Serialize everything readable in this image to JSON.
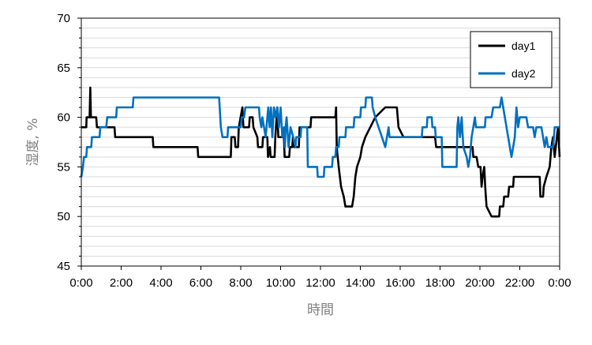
{
  "chart_data": {
    "type": "line",
    "title": "",
    "xlabel": "時間",
    "ylabel": "湿度, %",
    "ylim": [
      45,
      70
    ],
    "y_major_step": 5,
    "y_minor_step": 1,
    "xlim_hours": [
      0,
      24
    ],
    "x_tick_labels": [
      "0:00",
      "2:00",
      "4:00",
      "6:00",
      "8:00",
      "10:00",
      "12:00",
      "14:00",
      "16:00",
      "18:00",
      "20:00",
      "22:00",
      "0:00"
    ],
    "y_tick_labels": [
      "45",
      "50",
      "55",
      "60",
      "65",
      "70"
    ],
    "grid": "horizontal minor gridlines",
    "legend_position": "top-right",
    "series": [
      {
        "name": "day1",
        "color": "#000000",
        "points": [
          [
            "0:00",
            59
          ],
          [
            "0:15",
            59
          ],
          [
            "0:16",
            60
          ],
          [
            "0:25",
            60
          ],
          [
            "0:27",
            63
          ],
          [
            "0:29",
            60
          ],
          [
            "0:45",
            60
          ],
          [
            "0:47",
            59
          ],
          [
            "1:40",
            59
          ],
          [
            "1:42",
            58
          ],
          [
            "3:35",
            58
          ],
          [
            "3:37",
            57
          ],
          [
            "5:50",
            57
          ],
          [
            "5:52",
            56
          ],
          [
            "7:30",
            56
          ],
          [
            "7:32",
            58
          ],
          [
            "7:42",
            58
          ],
          [
            "7:44",
            57
          ],
          [
            "7:52",
            57
          ],
          [
            "7:54",
            59
          ],
          [
            "8:05",
            61
          ],
          [
            "8:08",
            59
          ],
          [
            "8:25",
            59
          ],
          [
            "8:27",
            60
          ],
          [
            "8:36",
            60
          ],
          [
            "8:38",
            59
          ],
          [
            "8:50",
            58
          ],
          [
            "8:52",
            57
          ],
          [
            "9:05",
            57
          ],
          [
            "9:07",
            58
          ],
          [
            "9:20",
            58
          ],
          [
            "9:22",
            56
          ],
          [
            "9:28",
            57
          ],
          [
            "9:30",
            56
          ],
          [
            "9:42",
            56
          ],
          [
            "9:44",
            58
          ],
          [
            "9:50",
            61
          ],
          [
            "9:53",
            58
          ],
          [
            "10:10",
            58
          ],
          [
            "10:12",
            56
          ],
          [
            "10:26",
            56
          ],
          [
            "10:28",
            57
          ],
          [
            "10:35",
            57
          ],
          [
            "10:37",
            58
          ],
          [
            "10:40",
            57
          ],
          [
            "10:55",
            57
          ],
          [
            "10:57",
            59
          ],
          [
            "11:30",
            59
          ],
          [
            "11:32",
            60
          ],
          [
            "12:45",
            60
          ],
          [
            "12:47",
            61
          ],
          [
            "12:49",
            57
          ],
          [
            "12:55",
            55
          ],
          [
            "13:02",
            53
          ],
          [
            "13:10",
            52
          ],
          [
            "13:15",
            51
          ],
          [
            "13:35",
            51
          ],
          [
            "13:40",
            52
          ],
          [
            "13:45",
            54
          ],
          [
            "13:50",
            55
          ],
          [
            "14:00",
            56
          ],
          [
            "14:05",
            57
          ],
          [
            "14:15",
            58
          ],
          [
            "14:30",
            59
          ],
          [
            "14:45",
            60
          ],
          [
            "15:15",
            61
          ],
          [
            "15:50",
            61
          ],
          [
            "15:55",
            59
          ],
          [
            "16:10",
            58
          ],
          [
            "17:45",
            58
          ],
          [
            "17:48",
            57
          ],
          [
            "19:38",
            57
          ],
          [
            "19:40",
            56
          ],
          [
            "19:50",
            56
          ],
          [
            "19:55",
            55
          ],
          [
            "20:02",
            55
          ],
          [
            "20:05",
            53
          ],
          [
            "20:08",
            54
          ],
          [
            "20:13",
            55
          ],
          [
            "20:16",
            53
          ],
          [
            "20:20",
            51
          ],
          [
            "20:35",
            50
          ],
          [
            "20:58",
            50
          ],
          [
            "21:00",
            51
          ],
          [
            "21:10",
            51
          ],
          [
            "21:13",
            52
          ],
          [
            "21:25",
            52
          ],
          [
            "21:28",
            53
          ],
          [
            "21:40",
            53
          ],
          [
            "21:42",
            54
          ],
          [
            "23:00",
            54
          ],
          [
            "23:02",
            52
          ],
          [
            "23:10",
            52
          ],
          [
            "23:12",
            53
          ],
          [
            "23:20",
            54
          ],
          [
            "23:30",
            55
          ],
          [
            "23:35",
            57
          ],
          [
            "23:40",
            58
          ],
          [
            "23:45",
            56
          ],
          [
            "23:55",
            59
          ],
          [
            "24:00",
            56
          ]
        ]
      },
      {
        "name": "day2",
        "color": "#0070C0",
        "points": [
          [
            "0:00",
            54
          ],
          [
            "0:05",
            55
          ],
          [
            "0:08",
            56
          ],
          [
            "0:15",
            56
          ],
          [
            "0:17",
            57
          ],
          [
            "0:30",
            57
          ],
          [
            "0:32",
            58
          ],
          [
            "0:55",
            58
          ],
          [
            "0:57",
            59
          ],
          [
            "1:15",
            59
          ],
          [
            "1:18",
            60
          ],
          [
            "1:45",
            60
          ],
          [
            "1:47",
            61
          ],
          [
            "2:35",
            61
          ],
          [
            "2:37",
            62
          ],
          [
            "6:55",
            62
          ],
          [
            "7:00",
            59
          ],
          [
            "7:05",
            58
          ],
          [
            "7:20",
            58
          ],
          [
            "7:22",
            59
          ],
          [
            "8:00",
            59
          ],
          [
            "8:03",
            60
          ],
          [
            "8:10",
            60
          ],
          [
            "8:14",
            61
          ],
          [
            "8:55",
            61
          ],
          [
            "8:57",
            60
          ],
          [
            "9:02",
            59
          ],
          [
            "9:05",
            60
          ],
          [
            "9:10",
            59
          ],
          [
            "9:15",
            58
          ],
          [
            "9:20",
            60
          ],
          [
            "9:23",
            61
          ],
          [
            "9:27",
            59
          ],
          [
            "9:31",
            61
          ],
          [
            "9:35",
            58
          ],
          [
            "9:40",
            61
          ],
          [
            "9:45",
            60
          ],
          [
            "9:50",
            61
          ],
          [
            "9:55",
            59
          ],
          [
            "10:00",
            61
          ],
          [
            "10:05",
            58
          ],
          [
            "10:10",
            59
          ],
          [
            "10:13",
            57
          ],
          [
            "10:15",
            59
          ],
          [
            "10:18",
            60
          ],
          [
            "10:24",
            57
          ],
          [
            "10:30",
            59
          ],
          [
            "10:38",
            58
          ],
          [
            "10:45",
            57
          ],
          [
            "10:47",
            58
          ],
          [
            "11:00",
            58
          ],
          [
            "11:02",
            59
          ],
          [
            "11:20",
            59
          ],
          [
            "11:22",
            55
          ],
          [
            "11:50",
            55
          ],
          [
            "11:52",
            54
          ],
          [
            "12:10",
            54
          ],
          [
            "12:12",
            55
          ],
          [
            "12:35",
            55
          ],
          [
            "12:37",
            56
          ],
          [
            "12:45",
            56
          ],
          [
            "12:47",
            57
          ],
          [
            "12:55",
            57
          ],
          [
            "12:57",
            58
          ],
          [
            "13:15",
            58
          ],
          [
            "13:17",
            59
          ],
          [
            "13:40",
            59
          ],
          [
            "13:42",
            60
          ],
          [
            "14:00",
            60
          ],
          [
            "14:02",
            61
          ],
          [
            "14:15",
            61
          ],
          [
            "14:17",
            62
          ],
          [
            "14:35",
            62
          ],
          [
            "14:37",
            61
          ],
          [
            "14:45",
            60
          ],
          [
            "14:55",
            59
          ],
          [
            "15:05",
            58
          ],
          [
            "15:15",
            57
          ],
          [
            "15:20",
            58
          ],
          [
            "15:25",
            59
          ],
          [
            "15:28",
            58
          ],
          [
            "17:05",
            58
          ],
          [
            "17:07",
            59
          ],
          [
            "17:20",
            59
          ],
          [
            "17:22",
            60
          ],
          [
            "17:35",
            60
          ],
          [
            "17:37",
            59
          ],
          [
            "17:45",
            59
          ],
          [
            "17:47",
            58
          ],
          [
            "18:05",
            58
          ],
          [
            "18:07",
            55
          ],
          [
            "18:50",
            55
          ],
          [
            "18:52",
            59
          ],
          [
            "18:55",
            60
          ],
          [
            "19:00",
            58
          ],
          [
            "19:05",
            60
          ],
          [
            "19:10",
            57
          ],
          [
            "19:20",
            56
          ],
          [
            "19:25",
            55
          ],
          [
            "19:30",
            56
          ],
          [
            "19:35",
            58
          ],
          [
            "19:40",
            59
          ],
          [
            "19:45",
            60
          ],
          [
            "19:48",
            59
          ],
          [
            "20:15",
            59
          ],
          [
            "20:17",
            60
          ],
          [
            "20:35",
            60
          ],
          [
            "20:40",
            61
          ],
          [
            "21:00",
            61
          ],
          [
            "21:05",
            62
          ],
          [
            "21:10",
            61
          ],
          [
            "21:15",
            60
          ],
          [
            "21:20",
            59
          ],
          [
            "21:25",
            58
          ],
          [
            "21:30",
            57
          ],
          [
            "21:35",
            56
          ],
          [
            "21:40",
            57
          ],
          [
            "21:45",
            58
          ],
          [
            "21:50",
            61
          ],
          [
            "21:55",
            59
          ],
          [
            "22:00",
            60
          ],
          [
            "22:20",
            60
          ],
          [
            "22:25",
            59
          ],
          [
            "22:40",
            59
          ],
          [
            "22:45",
            58
          ],
          [
            "22:50",
            59
          ],
          [
            "23:05",
            59
          ],
          [
            "23:10",
            58
          ],
          [
            "23:15",
            57
          ],
          [
            "23:20",
            58
          ],
          [
            "23:25",
            57
          ],
          [
            "23:40",
            57
          ],
          [
            "23:43",
            58
          ],
          [
            "23:45",
            59
          ],
          [
            "23:55",
            59
          ],
          [
            "24:00",
            59
          ]
        ]
      }
    ]
  }
}
